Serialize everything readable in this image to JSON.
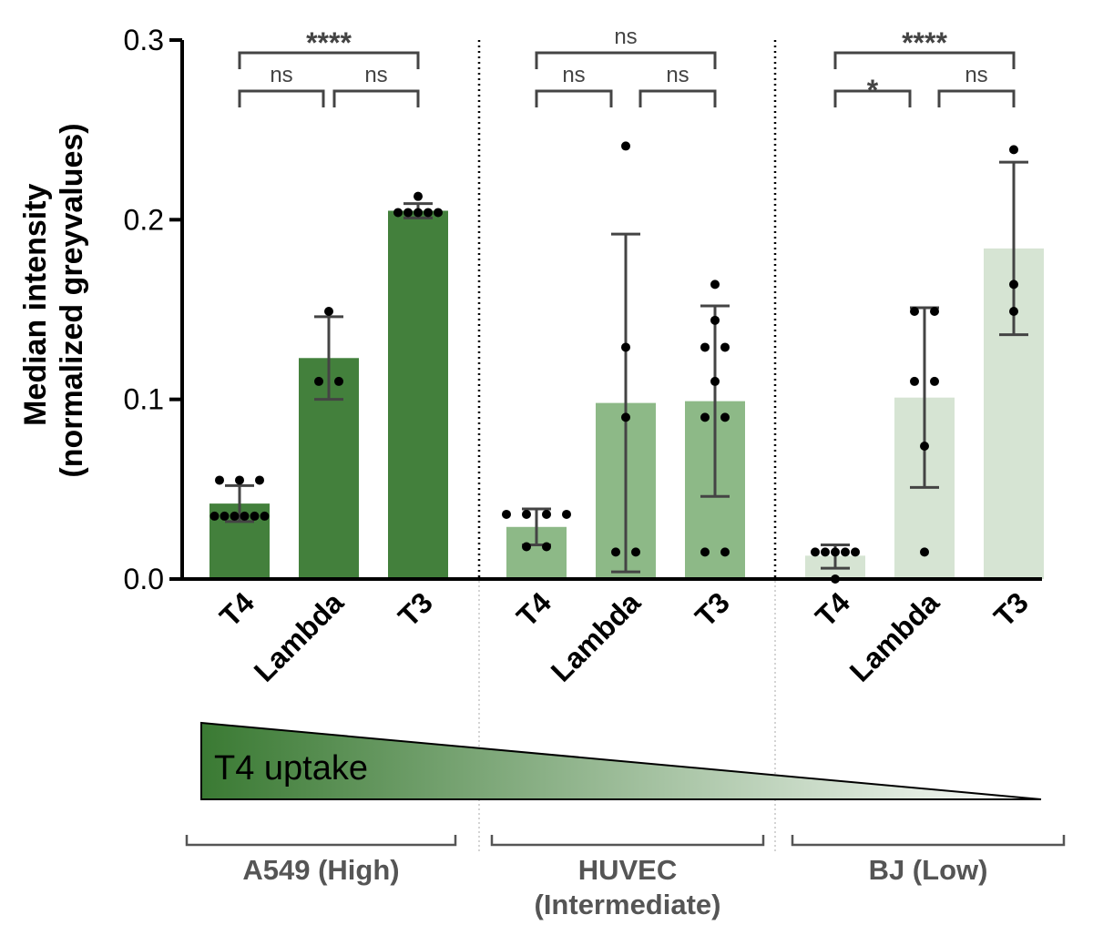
{
  "chart_data": {
    "type": "bar",
    "ylabel_lines": [
      "Median intensity",
      "(normalized greyvalues)"
    ],
    "ylim": [
      0,
      0.3
    ],
    "yticks": [
      {
        "value": 0.0,
        "label": "0.0"
      },
      {
        "value": 0.1,
        "label": "0.1"
      },
      {
        "value": 0.2,
        "label": "0.2"
      },
      {
        "value": 0.3,
        "label": "0.3"
      }
    ],
    "colors": {
      "A549": "#43803c",
      "HUVEC": "#8db987",
      "BJ": "#d6e4d3",
      "error": "#444444",
      "point": "#000000"
    },
    "groups": [
      {
        "key": "A549",
        "label_lines": [
          "A549 (High)"
        ],
        "bars": [
          {
            "category": "T4",
            "value": 0.042,
            "sd_low": 0.032,
            "sd_high": 0.052,
            "points": [
              0.035,
              0.035,
              0.035,
              0.035,
              0.035,
              0.035,
              0.055,
              0.055,
              0.055
            ]
          },
          {
            "category": "Lambda",
            "value": 0.123,
            "sd_low": 0.1,
            "sd_high": 0.146,
            "points": [
              0.149,
              0.11,
              0.11
            ]
          },
          {
            "category": "T3",
            "value": 0.205,
            "sd_low": 0.201,
            "sd_high": 0.209,
            "points": [
              0.204,
              0.204,
              0.204,
              0.204,
              0.204,
              0.213
            ]
          }
        ],
        "comparisons": [
          {
            "from": 0,
            "to": 1,
            "label": "ns",
            "level": 1
          },
          {
            "from": 1,
            "to": 2,
            "label": "ns",
            "level": 1
          },
          {
            "from": 0,
            "to": 2,
            "label": "****",
            "level": 2
          }
        ]
      },
      {
        "key": "HUVEC",
        "label_lines": [
          "HUVEC",
          "(Intermediate)"
        ],
        "bars": [
          {
            "category": "T4",
            "value": 0.029,
            "sd_low": 0.019,
            "sd_high": 0.039,
            "points": [
              0.036,
              0.036,
              0.036,
              0.036,
              0.018,
              0.018
            ]
          },
          {
            "category": "Lambda",
            "value": 0.098,
            "sd_low": 0.004,
            "sd_high": 0.192,
            "points": [
              0.241,
              0.129,
              0.09,
              0.015,
              0.015
            ]
          },
          {
            "category": "T3",
            "value": 0.099,
            "sd_low": 0.046,
            "sd_high": 0.152,
            "points": [
              0.164,
              0.144,
              0.129,
              0.129,
              0.11,
              0.09,
              0.09,
              0.015,
              0.015
            ]
          }
        ],
        "comparisons": [
          {
            "from": 0,
            "to": 1,
            "label": "ns",
            "level": 1
          },
          {
            "from": 1,
            "to": 2,
            "label": "ns",
            "level": 1
          },
          {
            "from": 0,
            "to": 2,
            "label": "ns",
            "level": 2
          }
        ]
      },
      {
        "key": "BJ",
        "label_lines": [
          "BJ (Low)"
        ],
        "bars": [
          {
            "category": "T4",
            "value": 0.013,
            "sd_low": 0.006,
            "sd_high": 0.019,
            "points": [
              0.015,
              0.015,
              0.015,
              0.015,
              0.015,
              0.0
            ]
          },
          {
            "category": "Lambda",
            "value": 0.101,
            "sd_low": 0.051,
            "sd_high": 0.151,
            "points": [
              0.149,
              0.149,
              0.11,
              0.11,
              0.074,
              0.015
            ]
          },
          {
            "category": "T3",
            "value": 0.184,
            "sd_low": 0.136,
            "sd_high": 0.232,
            "points": [
              0.239,
              0.164,
              0.149
            ]
          }
        ],
        "comparisons": [
          {
            "from": 0,
            "to": 1,
            "label": "*",
            "level": 1
          },
          {
            "from": 1,
            "to": 2,
            "label": "ns",
            "level": 1
          },
          {
            "from": 0,
            "to": 2,
            "label": "****",
            "level": 2
          }
        ]
      }
    ],
    "uptake_label": "T4 uptake",
    "uptake_colors": [
      "#3a7a33",
      "#ffffff"
    ]
  }
}
